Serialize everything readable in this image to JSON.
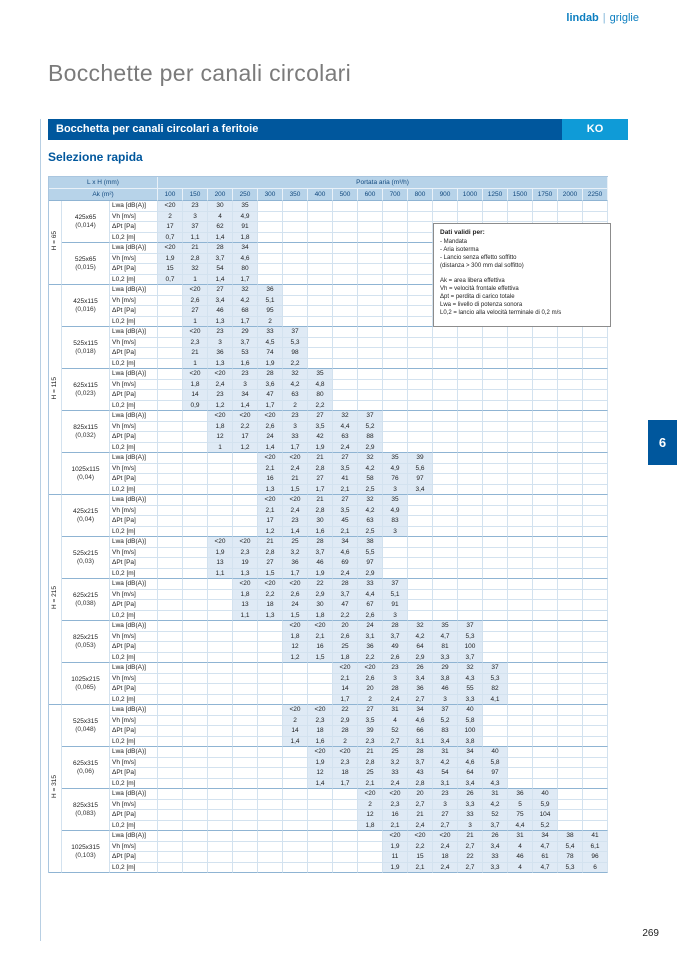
{
  "page": {
    "brand": "lindab",
    "brand_sep": "|",
    "brand_section": "griglie",
    "title": "Bocchette per canali circolari",
    "banner": {
      "label": "Bocchetta per canali circolari a feritoie",
      "code": "KO"
    },
    "section_heading": "Selezione rapida",
    "chapter_tab": "6",
    "page_number": "269"
  },
  "notes_box": {
    "title": "Dati validi per:",
    "conditions": [
      "- Mandata",
      "- Aria isoterma",
      "- Lancio senza effetto soffitto",
      "(distanza > 300 mm dal soffitto)"
    ],
    "definitions": [
      "Ak = area libera effettiva",
      "Vh = velocità frontale effettiva",
      "Δpt = perdita di carico totale",
      "Lwa = livello di potenza sonora",
      "L0,2 = lancio alla velocità terminale di 0,2 m/s"
    ]
  },
  "table": {
    "header": {
      "size_label": "L x H (mm)",
      "area_label": "Ak (m²)",
      "flow_label": "Portata aria (m³/h)",
      "flow_columns": [
        "100",
        "150",
        "200",
        "250",
        "300",
        "350",
        "400",
        "500",
        "600",
        "700",
        "800",
        "900",
        "1000",
        "1250",
        "1500",
        "1750",
        "2000",
        "2250"
      ]
    },
    "row_labels": [
      "Lwa [dB(A)]",
      "Vh [m/s]",
      "ΔPt [Pa]",
      "L0,2 [m]"
    ],
    "h_groups": [
      {
        "label": "H = 65",
        "groups": 2
      },
      {
        "label": "H = 115",
        "groups": 5
      },
      {
        "label": "H = 215",
        "groups": 5
      },
      {
        "label": "H = 315",
        "groups": 4
      }
    ],
    "groups": [
      {
        "size": "425x65",
        "area": "(0,014)",
        "start": 0,
        "rows": [
          [
            "<20",
            "23",
            "30",
            "35"
          ],
          [
            "2",
            "3",
            "4",
            "4,9"
          ],
          [
            "17",
            "37",
            "62",
            "91"
          ],
          [
            "0,7",
            "1,1",
            "1,4",
            "1,8"
          ]
        ]
      },
      {
        "size": "525x65",
        "area": "(0,015)",
        "start": 0,
        "rows": [
          [
            "<20",
            "21",
            "28",
            "34"
          ],
          [
            "1,9",
            "2,8",
            "3,7",
            "4,6"
          ],
          [
            "15",
            "32",
            "54",
            "80"
          ],
          [
            "0,7",
            "1",
            "1,4",
            "1,7"
          ]
        ]
      },
      {
        "size": "425x115",
        "area": "(0,016)",
        "start": 1,
        "rows": [
          [
            "<20",
            "27",
            "32",
            "36"
          ],
          [
            "2,6",
            "3,4",
            "4,2",
            "5,1"
          ],
          [
            "27",
            "46",
            "68",
            "95"
          ],
          [
            "1",
            "1,3",
            "1,7",
            "2"
          ]
        ]
      },
      {
        "size": "525x115",
        "area": "(0,018)",
        "start": 1,
        "rows": [
          [
            "<20",
            "23",
            "29",
            "33",
            "37"
          ],
          [
            "2,3",
            "3",
            "3,7",
            "4,5",
            "5,3"
          ],
          [
            "21",
            "36",
            "53",
            "74",
            "98"
          ],
          [
            "1",
            "1,3",
            "1,6",
            "1,9",
            "2,2"
          ]
        ]
      },
      {
        "size": "625x115",
        "area": "(0,023)",
        "start": 1,
        "rows": [
          [
            "<20",
            "<20",
            "23",
            "28",
            "32",
            "35"
          ],
          [
            "1,8",
            "2,4",
            "3",
            "3,6",
            "4,2",
            "4,8"
          ],
          [
            "14",
            "23",
            "34",
            "47",
            "63",
            "80"
          ],
          [
            "0,9",
            "1,2",
            "1,4",
            "1,7",
            "2",
            "2,2"
          ]
        ]
      },
      {
        "size": "825x115",
        "area": "(0,032)",
        "start": 2,
        "rows": [
          [
            "<20",
            "<20",
            "<20",
            "23",
            "27",
            "32",
            "37"
          ],
          [
            "1,8",
            "2,2",
            "2,6",
            "3",
            "3,5",
            "4,4",
            "5,2"
          ],
          [
            "12",
            "17",
            "24",
            "33",
            "42",
            "63",
            "88"
          ],
          [
            "1",
            "1,2",
            "1,4",
            "1,7",
            "1,9",
            "2,4",
            "2,9"
          ]
        ]
      },
      {
        "size": "1025x115",
        "area": "(0,04)",
        "start": 4,
        "rows": [
          [
            "<20",
            "<20",
            "21",
            "27",
            "32",
            "35",
            "39"
          ],
          [
            "2,1",
            "2,4",
            "2,8",
            "3,5",
            "4,2",
            "4,9",
            "5,6"
          ],
          [
            "16",
            "21",
            "27",
            "41",
            "58",
            "76",
            "97"
          ],
          [
            "1,3",
            "1,5",
            "1,7",
            "2,1",
            "2,5",
            "3",
            "3,4"
          ]
        ]
      },
      {
        "size": "425x215",
        "area": "(0,04)",
        "start": 4,
        "rows": [
          [
            "<20",
            "<20",
            "21",
            "27",
            "32",
            "35"
          ],
          [
            "2,1",
            "2,4",
            "2,8",
            "3,5",
            "4,2",
            "4,9"
          ],
          [
            "17",
            "23",
            "30",
            "45",
            "63",
            "83"
          ],
          [
            "1,2",
            "1,4",
            "1,6",
            "2,1",
            "2,5",
            "3"
          ]
        ]
      },
      {
        "size": "525x215",
        "area": "(0,03)",
        "start": 2,
        "rows": [
          [
            "<20",
            "<20",
            "21",
            "25",
            "28",
            "34",
            "38"
          ],
          [
            "1,9",
            "2,3",
            "2,8",
            "3,2",
            "3,7",
            "4,6",
            "5,5"
          ],
          [
            "13",
            "19",
            "27",
            "36",
            "46",
            "69",
            "97"
          ],
          [
            "1,1",
            "1,3",
            "1,5",
            "1,7",
            "1,9",
            "2,4",
            "2,9"
          ]
        ]
      },
      {
        "size": "625x215",
        "area": "(0,038)",
        "start": 3,
        "rows": [
          [
            "<20",
            "<20",
            "<20",
            "22",
            "28",
            "33",
            "37"
          ],
          [
            "1,8",
            "2,2",
            "2,6",
            "2,9",
            "3,7",
            "4,4",
            "5,1"
          ],
          [
            "13",
            "18",
            "24",
            "30",
            "47",
            "67",
            "91"
          ],
          [
            "1,1",
            "1,3",
            "1,5",
            "1,8",
            "2,2",
            "2,6",
            "3"
          ]
        ]
      },
      {
        "size": "825x215",
        "area": "(0,053)",
        "start": 5,
        "rows": [
          [
            "<20",
            "<20",
            "20",
            "24",
            "28",
            "32",
            "35",
            "37"
          ],
          [
            "1,8",
            "2,1",
            "2,6",
            "3,1",
            "3,7",
            "4,2",
            "4,7",
            "5,3"
          ],
          [
            "12",
            "16",
            "25",
            "36",
            "49",
            "64",
            "81",
            "100"
          ],
          [
            "1,2",
            "1,5",
            "1,8",
            "2,2",
            "2,6",
            "2,9",
            "3,3",
            "3,7"
          ]
        ]
      },
      {
        "size": "1025x215",
        "area": "(0,065)",
        "start": 7,
        "rows": [
          [
            "<20",
            "<20",
            "23",
            "26",
            "29",
            "32",
            "37"
          ],
          [
            "2,1",
            "2,6",
            "3",
            "3,4",
            "3,8",
            "4,3",
            "5,3"
          ],
          [
            "14",
            "20",
            "28",
            "36",
            "46",
            "55",
            "82"
          ],
          [
            "1,7",
            "2",
            "2,4",
            "2,7",
            "3",
            "3,3",
            "4,1"
          ]
        ]
      },
      {
        "size": "525x315",
        "area": "(0,048)",
        "start": 5,
        "rows": [
          [
            "<20",
            "<20",
            "22",
            "27",
            "31",
            "34",
            "37",
            "40"
          ],
          [
            "2",
            "2,3",
            "2,9",
            "3,5",
            "4",
            "4,6",
            "5,2",
            "5,8"
          ],
          [
            "14",
            "18",
            "28",
            "39",
            "52",
            "66",
            "83",
            "100"
          ],
          [
            "1,4",
            "1,6",
            "2",
            "2,3",
            "2,7",
            "3,1",
            "3,4",
            "3,8"
          ]
        ]
      },
      {
        "size": "625x315",
        "area": "(0,06)",
        "start": 6,
        "rows": [
          [
            "<20",
            "<20",
            "21",
            "25",
            "28",
            "31",
            "34",
            "40"
          ],
          [
            "1,9",
            "2,3",
            "2,8",
            "3,2",
            "3,7",
            "4,2",
            "4,6",
            "5,8"
          ],
          [
            "12",
            "18",
            "25",
            "33",
            "43",
            "54",
            "64",
            "97"
          ],
          [
            "1,4",
            "1,7",
            "2,1",
            "2,4",
            "2,8",
            "3,1",
            "3,4",
            "4,3"
          ]
        ]
      },
      {
        "size": "825x315",
        "area": "(0,083)",
        "start": 8,
        "rows": [
          [
            "<20",
            "<20",
            "20",
            "23",
            "26",
            "31",
            "36",
            "40"
          ],
          [
            "2",
            "2,3",
            "2,7",
            "3",
            "3,3",
            "4,2",
            "5",
            "5,9"
          ],
          [
            "12",
            "16",
            "21",
            "27",
            "33",
            "52",
            "75",
            "104"
          ],
          [
            "1,8",
            "2,1",
            "2,4",
            "2,7",
            "3",
            "3,7",
            "4,4",
            "5,2"
          ]
        ]
      },
      {
        "size": "1025x315",
        "area": "(0,103)",
        "start": 9,
        "rows": [
          [
            "<20",
            "<20",
            "<20",
            "21",
            "26",
            "31",
            "34",
            "38",
            "41"
          ],
          [
            "1,9",
            "2,2",
            "2,4",
            "2,7",
            "3,4",
            "4",
            "4,7",
            "5,4",
            "6,1"
          ],
          [
            "11",
            "15",
            "18",
            "22",
            "33",
            "46",
            "61",
            "78",
            "96"
          ],
          [
            "1,9",
            "2,1",
            "2,4",
            "2,7",
            "3,3",
            "4",
            "4,7",
            "5,3",
            "6"
          ]
        ]
      }
    ]
  }
}
